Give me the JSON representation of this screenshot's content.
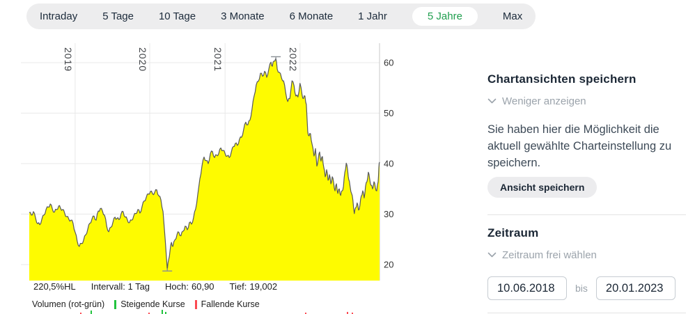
{
  "tabs": {
    "items": [
      {
        "label": "Intraday",
        "selected": false
      },
      {
        "label": "5 Tage",
        "selected": false
      },
      {
        "label": "10 Tage",
        "selected": false
      },
      {
        "label": "3 Monate",
        "selected": false
      },
      {
        "label": "6 Monate",
        "selected": false
      },
      {
        "label": "1 Jahr",
        "selected": false
      },
      {
        "label": "5 Jahre",
        "selected": true
      },
      {
        "label": "Max",
        "selected": false
      }
    ]
  },
  "stats": {
    "range_pct": "220,5%HL",
    "interval": "Intervall: 1 Tag",
    "high_label": "Hoch:",
    "high_value": "60,90",
    "low_label": "Tief:",
    "low_value": "19,002"
  },
  "legend": {
    "volume_label": "Volumen (rot-grün)",
    "up_label": "Steigende Kurse",
    "down_label": "Fallende Kurse",
    "up_color": "#22c33e",
    "down_color": "#fb4a52"
  },
  "panel": {
    "save": {
      "title": "Chartansichten speichern",
      "collapse_label": "Weniger anzeigen",
      "description": "Sie haben hier die Möglichkeit die aktuell gewählte Charteinstellung zu speichern.",
      "button_label": "Ansicht speichern"
    },
    "period": {
      "title": "Zeitraum",
      "link_label": "Zeitraum frei wählen",
      "from": "10.06.2018",
      "separator": "bis",
      "to": "20.01.2023"
    }
  },
  "chart_data": {
    "type": "area",
    "title": "",
    "xlabel": "",
    "ylabel": "",
    "x_range": {
      "start": "10.06.2018",
      "end": "20.01.2023"
    },
    "ylim": [
      14.5,
      62
    ],
    "yticks": [
      60,
      50,
      40,
      30,
      20
    ],
    "ytick_labels": [
      "60",
      "50",
      "40",
      "30",
      "20"
    ],
    "grid": true,
    "year_gridlines": [
      {
        "label": "2019",
        "t": 0.131
      },
      {
        "label": "2020",
        "t": 0.344
      },
      {
        "label": "2021",
        "t": 0.559
      },
      {
        "label": "2022",
        "t": 0.773
      }
    ],
    "high_marker": {
      "value": 60.9,
      "t": 0.704
    },
    "low_marker": {
      "value": 19.0,
      "t": 0.394
    },
    "colors": {
      "fill": "#fefb00",
      "line": "#56585b",
      "grid": "#e9e9e9",
      "axis": "#c9c9c9",
      "marker": "#8a8f94",
      "up": "#22c33e",
      "down": "#fb4a52",
      "accent_green": "#1f9e4e"
    },
    "points": [
      [
        0.0,
        30.3
      ],
      [
        0.006,
        29.8
      ],
      [
        0.012,
        30.5
      ],
      [
        0.018,
        29.2
      ],
      [
        0.024,
        28.1
      ],
      [
        0.03,
        27.9
      ],
      [
        0.036,
        29.0
      ],
      [
        0.042,
        29.8
      ],
      [
        0.048,
        30.9
      ],
      [
        0.054,
        31.4
      ],
      [
        0.06,
        32.0
      ],
      [
        0.066,
        31.0
      ],
      [
        0.072,
        30.4
      ],
      [
        0.078,
        30.9
      ],
      [
        0.084,
        31.6
      ],
      [
        0.089,
        31.2
      ],
      [
        0.095,
        30.9
      ],
      [
        0.101,
        30.2
      ],
      [
        0.107,
        29.5
      ],
      [
        0.113,
        29.0
      ],
      [
        0.119,
        28.8
      ],
      [
        0.125,
        28.2
      ],
      [
        0.131,
        26.4
      ],
      [
        0.137,
        24.6
      ],
      [
        0.143,
        23.6
      ],
      [
        0.149,
        24.2
      ],
      [
        0.155,
        24.8
      ],
      [
        0.161,
        25.9
      ],
      [
        0.167,
        27.0
      ],
      [
        0.173,
        28.2
      ],
      [
        0.179,
        29.0
      ],
      [
        0.185,
        29.6
      ],
      [
        0.191,
        28.8
      ],
      [
        0.197,
        30.6
      ],
      [
        0.203,
        31.1
      ],
      [
        0.209,
        30.6
      ],
      [
        0.215,
        29.8
      ],
      [
        0.221,
        27.6
      ],
      [
        0.227,
        26.5
      ],
      [
        0.233,
        27.4
      ],
      [
        0.239,
        28.4
      ],
      [
        0.245,
        29.4
      ],
      [
        0.25,
        29.1
      ],
      [
        0.256,
        28.9
      ],
      [
        0.262,
        30.0
      ],
      [
        0.268,
        30.5
      ],
      [
        0.274,
        29.4
      ],
      [
        0.28,
        28.9
      ],
      [
        0.286,
        28.3
      ],
      [
        0.292,
        28.8
      ],
      [
        0.298,
        29.6
      ],
      [
        0.304,
        30.1
      ],
      [
        0.31,
        30.9
      ],
      [
        0.316,
        30.2
      ],
      [
        0.322,
        31.5
      ],
      [
        0.328,
        32.6
      ],
      [
        0.334,
        33.3
      ],
      [
        0.34,
        34.0
      ],
      [
        0.346,
        34.5
      ],
      [
        0.352,
        34.0
      ],
      [
        0.358,
        34.3
      ],
      [
        0.364,
        34.8
      ],
      [
        0.37,
        33.6
      ],
      [
        0.376,
        32.8
      ],
      [
        0.382,
        30.5
      ],
      [
        0.388,
        25.0
      ],
      [
        0.394,
        19.0
      ],
      [
        0.398,
        21.0
      ],
      [
        0.402,
        22.8
      ],
      [
        0.406,
        24.4
      ],
      [
        0.41,
        23.6
      ],
      [
        0.416,
        24.9
      ],
      [
        0.422,
        26.0
      ],
      [
        0.427,
        26.4
      ],
      [
        0.433,
        25.7
      ],
      [
        0.439,
        26.6
      ],
      [
        0.445,
        27.6
      ],
      [
        0.451,
        26.9
      ],
      [
        0.457,
        28.3
      ],
      [
        0.463,
        28.0
      ],
      [
        0.469,
        29.3
      ],
      [
        0.475,
        31.0
      ],
      [
        0.481,
        33.8
      ],
      [
        0.487,
        37.0
      ],
      [
        0.493,
        39.5
      ],
      [
        0.499,
        41.3
      ],
      [
        0.505,
        40.6
      ],
      [
        0.511,
        40.0
      ],
      [
        0.517,
        42.0
      ],
      [
        0.523,
        42.4
      ],
      [
        0.529,
        41.2
      ],
      [
        0.535,
        41.7
      ],
      [
        0.541,
        42.0
      ],
      [
        0.547,
        43.1
      ],
      [
        0.553,
        42.6
      ],
      [
        0.559,
        42.0
      ],
      [
        0.565,
        41.5
      ],
      [
        0.571,
        41.2
      ],
      [
        0.577,
        42.3
      ],
      [
        0.583,
        43.4
      ],
      [
        0.588,
        44.0
      ],
      [
        0.594,
        43.6
      ],
      [
        0.6,
        44.8
      ],
      [
        0.606,
        45.2
      ],
      [
        0.612,
        46.7
      ],
      [
        0.618,
        48.2
      ],
      [
        0.624,
        47.7
      ],
      [
        0.63,
        48.6
      ],
      [
        0.636,
        50.8
      ],
      [
        0.642,
        53.4
      ],
      [
        0.648,
        55.6
      ],
      [
        0.654,
        56.3
      ],
      [
        0.66,
        57.9
      ],
      [
        0.666,
        57.3
      ],
      [
        0.672,
        58.3
      ],
      [
        0.678,
        57.1
      ],
      [
        0.684,
        58.8
      ],
      [
        0.69,
        60.1
      ],
      [
        0.694,
        59.3
      ],
      [
        0.698,
        60.3
      ],
      [
        0.704,
        60.9
      ],
      [
        0.708,
        58.7
      ],
      [
        0.714,
        58.1
      ],
      [
        0.72,
        57.0
      ],
      [
        0.726,
        56.4
      ],
      [
        0.732,
        54.1
      ],
      [
        0.738,
        52.3
      ],
      [
        0.744,
        52.9
      ],
      [
        0.75,
        56.4
      ],
      [
        0.756,
        55.4
      ],
      [
        0.761,
        53.4
      ],
      [
        0.767,
        53.2
      ],
      [
        0.773,
        55.9
      ],
      [
        0.779,
        53.6
      ],
      [
        0.783,
        52.9
      ],
      [
        0.787,
        53.4
      ],
      [
        0.791,
        51.7
      ],
      [
        0.795,
        46.3
      ],
      [
        0.799,
        45.5
      ],
      [
        0.803,
        45.9
      ],
      [
        0.807,
        44.0
      ],
      [
        0.813,
        41.5
      ],
      [
        0.817,
        43.0
      ],
      [
        0.821,
        39.5
      ],
      [
        0.825,
        41.0
      ],
      [
        0.829,
        42.3
      ],
      [
        0.833,
        40.5
      ],
      [
        0.837,
        41.4
      ],
      [
        0.841,
        39.2
      ],
      [
        0.845,
        37.4
      ],
      [
        0.849,
        38.8
      ],
      [
        0.853,
        36.7
      ],
      [
        0.857,
        37.8
      ],
      [
        0.861,
        36.0
      ],
      [
        0.865,
        37.4
      ],
      [
        0.869,
        36.2
      ],
      [
        0.873,
        34.6
      ],
      [
        0.877,
        36.0
      ],
      [
        0.881,
        34.1
      ],
      [
        0.885,
        35.0
      ],
      [
        0.889,
        33.7
      ],
      [
        0.893,
        34.6
      ],
      [
        0.897,
        35.5
      ],
      [
        0.901,
        38.3
      ],
      [
        0.905,
        40.1
      ],
      [
        0.909,
        38.7
      ],
      [
        0.912,
        36.9
      ],
      [
        0.916,
        35.5
      ],
      [
        0.92,
        34.1
      ],
      [
        0.924,
        32.7
      ],
      [
        0.928,
        30.1
      ],
      [
        0.932,
        31.3
      ],
      [
        0.936,
        32.2
      ],
      [
        0.94,
        30.8
      ],
      [
        0.944,
        31.7
      ],
      [
        0.948,
        33.6
      ],
      [
        0.952,
        34.6
      ],
      [
        0.956,
        33.2
      ],
      [
        0.96,
        35.5
      ],
      [
        0.964,
        36.4
      ],
      [
        0.968,
        38.3
      ],
      [
        0.972,
        36.9
      ],
      [
        0.976,
        35.7
      ],
      [
        0.98,
        35.0
      ],
      [
        0.984,
        36.4
      ],
      [
        0.988,
        35.3
      ],
      [
        0.992,
        34.6
      ],
      [
        0.996,
        36.4
      ],
      [
        0.998,
        39.2
      ],
      [
        1.0,
        40.3
      ]
    ],
    "volume_ticks": [
      {
        "t": 0.145,
        "dir": "down",
        "h": 2
      },
      {
        "t": 0.175,
        "dir": "up",
        "h": 5
      },
      {
        "t": 0.34,
        "dir": "down",
        "h": 2
      },
      {
        "t": 0.378,
        "dir": "up",
        "h": 6
      },
      {
        "t": 0.388,
        "dir": "up",
        "h": 3
      },
      {
        "t": 0.787,
        "dir": "down",
        "h": 2
      },
      {
        "t": 0.907,
        "dir": "down",
        "h": 3
      },
      {
        "t": 0.921,
        "dir": "down",
        "h": 2
      }
    ]
  }
}
